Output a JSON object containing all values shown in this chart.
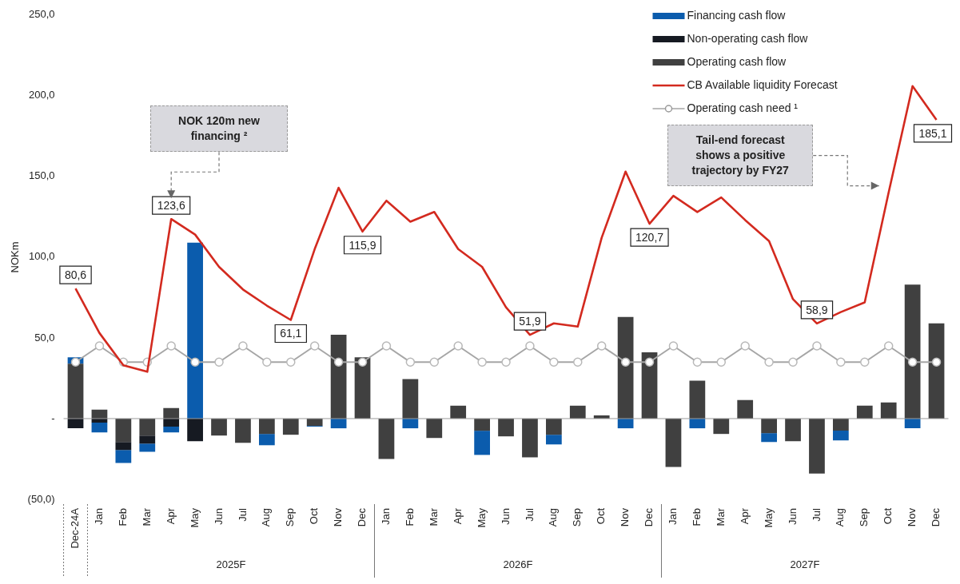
{
  "chart_data": {
    "type": "bar",
    "stacked": true,
    "ylabel": "NOKm",
    "ylim": [
      -50,
      250
    ],
    "yticks": [
      {
        "value": -50,
        "label": "(50,0)"
      },
      {
        "value": 0,
        "label": "-"
      },
      {
        "value": 50,
        "label": "50,0"
      },
      {
        "value": 100,
        "label": "100,0"
      },
      {
        "value": 150,
        "label": "150,0"
      },
      {
        "value": 200,
        "label": "200,0"
      },
      {
        "value": 250,
        "label": "250,0"
      }
    ],
    "legend": "top right",
    "categories": [
      "Dec-24A",
      "Jan",
      "Feb",
      "Mar",
      "Apr",
      "May",
      "Jun",
      "Jul",
      "Aug",
      "Sep",
      "Oct",
      "Nov",
      "Dec",
      "Jan",
      "Feb",
      "Mar",
      "Apr",
      "May",
      "Jun",
      "Jul",
      "Aug",
      "Sep",
      "Oct",
      "Nov",
      "Dec",
      "Jan",
      "Feb",
      "Mar",
      "Apr",
      "May",
      "Jun",
      "Jul",
      "Aug",
      "Sep",
      "Oct",
      "Nov",
      "Dec"
    ],
    "series": [
      {
        "name": "Operating cash flow",
        "type": "bar",
        "color": "#404040",
        "values": [
          34,
          5.5,
          -14.5,
          -10.5,
          6.5,
          0,
          -10.5,
          -15,
          -9.5,
          -10,
          -4.5,
          52,
          38,
          -25,
          24.5,
          -12,
          8,
          -7.5,
          -11,
          -24,
          -10,
          8,
          2,
          63,
          41,
          -30,
          23.5,
          -9.5,
          11.5,
          -9,
          -14,
          -34,
          -7.5,
          8,
          10,
          83,
          59
        ]
      },
      {
        "name": "Non-operating cash flow",
        "type": "bar",
        "color": "#161a22",
        "values": [
          -6,
          -2.5,
          -5,
          -5,
          -5,
          -14,
          0,
          0,
          0,
          0,
          0,
          0,
          0,
          0,
          0,
          0,
          0,
          0,
          0,
          0,
          0,
          0,
          0,
          0,
          0,
          0,
          0,
          0,
          0,
          0,
          0,
          0,
          0,
          0,
          0,
          0,
          0
        ]
      },
      {
        "name": "Financing cash flow",
        "type": "bar",
        "color": "#0b5cad",
        "values": [
          4,
          -6,
          -8,
          -5,
          -3.5,
          109,
          0,
          0,
          -7,
          0,
          -0.5,
          -6,
          0,
          0,
          -6,
          0,
          0,
          -15,
          0,
          0,
          -6,
          0,
          0,
          -6,
          0,
          0,
          -6,
          0,
          0,
          -5.5,
          0,
          0,
          -6,
          0,
          0,
          -6,
          0
        ]
      },
      {
        "name": "CB Available liquidity Forecast",
        "type": "line",
        "color": "#d32a1f",
        "marker": "none",
        "values": [
          80.6,
          53,
          33,
          29,
          123.6,
          114,
          94,
          80,
          70,
          61.1,
          105,
          143,
          115.9,
          135,
          122,
          128,
          105,
          94,
          69,
          51.9,
          59,
          57,
          112,
          153,
          120.7,
          138,
          128,
          137,
          123,
          110,
          74,
          58.9,
          66,
          72,
          140,
          206,
          185.1
        ],
        "value_labels": [
          "80,6",
          null,
          null,
          null,
          "123,6",
          null,
          null,
          null,
          null,
          "61,1",
          null,
          null,
          "115,9",
          null,
          null,
          null,
          null,
          null,
          null,
          "51,9",
          null,
          null,
          null,
          null,
          "120,7",
          null,
          null,
          null,
          null,
          null,
          null,
          "58,9",
          null,
          null,
          null,
          null,
          "185,1"
        ]
      },
      {
        "name": "Operating cash need ¹",
        "type": "line",
        "color": "#a6a6a6",
        "marker": "circle",
        "values": [
          35,
          45,
          35,
          35,
          45,
          35,
          35,
          45,
          35,
          35,
          45,
          35,
          35,
          45,
          35,
          35,
          45,
          35,
          35,
          45,
          35,
          35,
          45,
          35,
          35,
          45,
          35,
          35,
          45,
          35,
          35,
          45,
          35,
          35,
          45,
          35,
          35
        ]
      }
    ],
    "annotations": [
      "NOK 120m new financing ²",
      "Tail-end forecast shows a positive trajectory by FY27",
      "2025F",
      "2026F",
      "2027F"
    ]
  }
}
